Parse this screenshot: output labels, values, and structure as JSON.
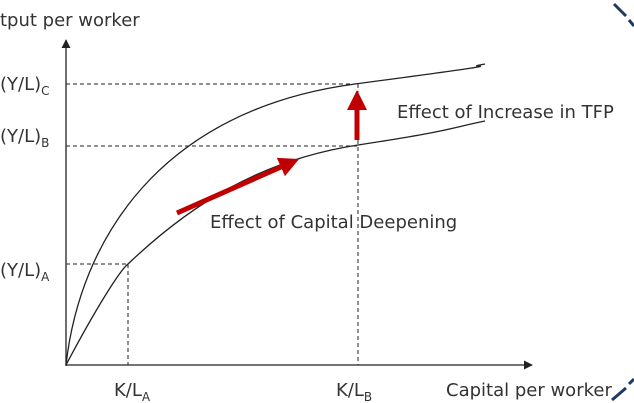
{
  "y_axis_label": "tput per worker",
  "x_axis_label": "Capital per worker",
  "y_labels": [
    {
      "base": "(Y/L)",
      "sub": "C"
    },
    {
      "base": "(Y/L)",
      "sub": "B"
    },
    {
      "base": "(Y/L)",
      "sub": "A"
    }
  ],
  "x_labels": [
    {
      "base": "K/L",
      "sub": "A"
    },
    {
      "base": "K/L",
      "sub": "B"
    }
  ],
  "annotations": {
    "tfp": "Effect of Increase in TFP",
    "deepening": "Effect of Capital Deepening"
  }
}
